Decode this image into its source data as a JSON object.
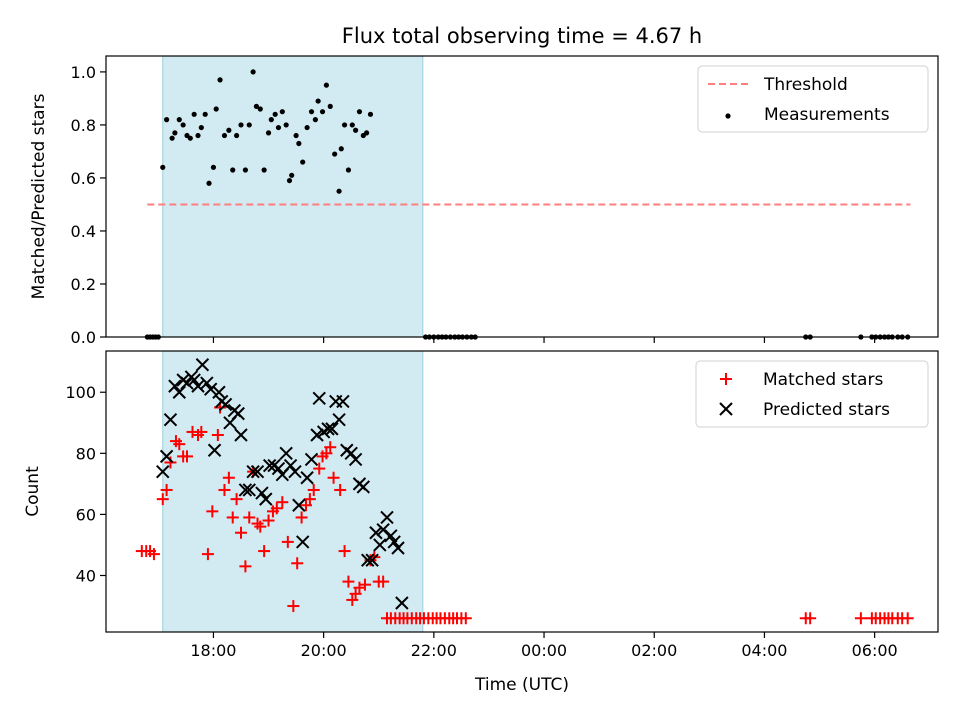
{
  "chart_data": {
    "type": "scatter",
    "title": "Flux total observing time = 4.67 h",
    "xlabel": "Time (UTC)",
    "x_tick_labels": [
      "18:00",
      "20:00",
      "22:00",
      "00:00",
      "02:00",
      "04:00",
      "06:00"
    ],
    "x_tick_hours": [
      18,
      20,
      22,
      24,
      26,
      28,
      30
    ],
    "xlim": [
      16.05,
      31.15
    ],
    "observing_window": [
      17.08,
      21.8
    ],
    "colors": {
      "window": "#add8e6",
      "threshold": "#ff7f7f",
      "measurements": "#000000",
      "matched": "#ff0000",
      "predicted": "#000000"
    },
    "panels": [
      {
        "id": "ratio",
        "ylabel": "Matched/Predicted stars",
        "ylim": [
          0,
          1.06
        ],
        "yticks": [
          0.0,
          0.2,
          0.4,
          0.6,
          0.8,
          1.0
        ],
        "ytick_labels": [
          "0.0",
          "0.2",
          "0.4",
          "0.6",
          "0.8",
          "1.0"
        ],
        "legend_position": "top-right",
        "threshold": {
          "name": "Threshold",
          "value": 0.5,
          "x_range": [
            16.8,
            30.65
          ]
        },
        "measurements": {
          "name": "Measurements",
          "points": [
            [
              16.8,
              0
            ],
            [
              16.85,
              0
            ],
            [
              16.9,
              0
            ],
            [
              16.95,
              0
            ],
            [
              17.0,
              0
            ],
            [
              17.08,
              0.64
            ],
            [
              17.15,
              0.82
            ],
            [
              17.25,
              0.75
            ],
            [
              17.3,
              0.77
            ],
            [
              17.38,
              0.82
            ],
            [
              17.45,
              0.8
            ],
            [
              17.52,
              0.76
            ],
            [
              17.58,
              0.75
            ],
            [
              17.65,
              0.84
            ],
            [
              17.72,
              0.76
            ],
            [
              17.78,
              0.79
            ],
            [
              17.85,
              0.84
            ],
            [
              17.92,
              0.58
            ],
            [
              18.0,
              0.64
            ],
            [
              18.05,
              0.86
            ],
            [
              18.12,
              0.97
            ],
            [
              18.2,
              0.76
            ],
            [
              18.28,
              0.78
            ],
            [
              18.35,
              0.63
            ],
            [
              18.42,
              0.76
            ],
            [
              18.5,
              0.8
            ],
            [
              18.58,
              0.63
            ],
            [
              18.65,
              0.8
            ],
            [
              18.72,
              1.0
            ],
            [
              18.78,
              0.87
            ],
            [
              18.85,
              0.86
            ],
            [
              18.92,
              0.63
            ],
            [
              19.0,
              0.77
            ],
            [
              19.05,
              0.82
            ],
            [
              19.12,
              0.84
            ],
            [
              19.18,
              0.79
            ],
            [
              19.25,
              0.85
            ],
            [
              19.32,
              0.8
            ],
            [
              19.38,
              0.59
            ],
            [
              19.42,
              0.61
            ],
            [
              19.5,
              0.76
            ],
            [
              19.55,
              0.73
            ],
            [
              19.62,
              0.66
            ],
            [
              19.7,
              0.79
            ],
            [
              19.78,
              0.85
            ],
            [
              19.85,
              0.82
            ],
            [
              19.9,
              0.89
            ],
            [
              19.98,
              0.85
            ],
            [
              20.05,
              0.95
            ],
            [
              20.12,
              0.87
            ],
            [
              20.2,
              0.69
            ],
            [
              20.28,
              0.55
            ],
            [
              20.32,
              0.71
            ],
            [
              20.38,
              0.8
            ],
            [
              20.45,
              0.63
            ],
            [
              20.52,
              0.8
            ],
            [
              20.58,
              0.78
            ],
            [
              20.65,
              0.85
            ],
            [
              20.72,
              0.76
            ],
            [
              20.78,
              0.77
            ],
            [
              20.85,
              0.84
            ],
            [
              21.85,
              0
            ],
            [
              21.92,
              0
            ],
            [
              22.0,
              0
            ],
            [
              22.08,
              0
            ],
            [
              22.15,
              0
            ],
            [
              22.22,
              0
            ],
            [
              22.3,
              0
            ],
            [
              22.38,
              0
            ],
            [
              22.45,
              0
            ],
            [
              22.52,
              0
            ],
            [
              22.6,
              0
            ],
            [
              22.68,
              0
            ],
            [
              22.75,
              0
            ],
            [
              28.75,
              0
            ],
            [
              28.83,
              0
            ],
            [
              29.75,
              0
            ],
            [
              29.95,
              0
            ],
            [
              30.02,
              0
            ],
            [
              30.1,
              0
            ],
            [
              30.18,
              0
            ],
            [
              30.25,
              0
            ],
            [
              30.32,
              0
            ],
            [
              30.42,
              0
            ],
            [
              30.5,
              0
            ],
            [
              30.6,
              0
            ]
          ]
        }
      },
      {
        "id": "count",
        "ylabel": "Count",
        "ylim": [
          21.5,
          113.5
        ],
        "yticks": [
          40,
          60,
          80,
          100
        ],
        "ytick_labels": [
          "40",
          "60",
          "80",
          "100"
        ],
        "legend_position": "top-right",
        "series": [
          {
            "name": "Matched stars",
            "marker": "plus",
            "points": [
              [
                16.7,
                48
              ],
              [
                16.78,
                48
              ],
              [
                16.85,
                48
              ],
              [
                16.92,
                47
              ],
              [
                17.08,
                65
              ],
              [
                17.15,
                68
              ],
              [
                17.22,
                77
              ],
              [
                17.32,
                84
              ],
              [
                17.38,
                83
              ],
              [
                17.45,
                79
              ],
              [
                17.52,
                79
              ],
              [
                17.62,
                87
              ],
              [
                17.72,
                86
              ],
              [
                17.78,
                87
              ],
              [
                17.9,
                47
              ],
              [
                17.98,
                61
              ],
              [
                18.08,
                86
              ],
              [
                18.12,
                95
              ],
              [
                18.2,
                68
              ],
              [
                18.28,
                72
              ],
              [
                18.35,
                59
              ],
              [
                18.42,
                65
              ],
              [
                18.5,
                54
              ],
              [
                18.58,
                43
              ],
              [
                18.65,
                59
              ],
              [
                18.72,
                74
              ],
              [
                18.8,
                57
              ],
              [
                18.85,
                56
              ],
              [
                18.92,
                48
              ],
              [
                19.0,
                58
              ],
              [
                19.08,
                61
              ],
              [
                19.15,
                62
              ],
              [
                19.25,
                64
              ],
              [
                19.35,
                51
              ],
              [
                19.45,
                30
              ],
              [
                19.52,
                44
              ],
              [
                19.6,
                59
              ],
              [
                19.68,
                63
              ],
              [
                19.75,
                65
              ],
              [
                19.82,
                68
              ],
              [
                19.92,
                75
              ],
              [
                19.98,
                79
              ],
              [
                20.05,
                80
              ],
              [
                20.12,
                82
              ],
              [
                20.18,
                72
              ],
              [
                20.3,
                68
              ],
              [
                20.38,
                48
              ],
              [
                20.45,
                38
              ],
              [
                20.52,
                32
              ],
              [
                20.58,
                34
              ],
              [
                20.65,
                36
              ],
              [
                20.75,
                37
              ],
              [
                20.85,
                45
              ],
              [
                20.92,
                46
              ],
              [
                21.0,
                38
              ],
              [
                21.08,
                38
              ],
              [
                21.15,
                26
              ],
              [
                21.22,
                26
              ],
              [
                21.3,
                26
              ],
              [
                21.38,
                26
              ],
              [
                21.45,
                26
              ],
              [
                21.52,
                26
              ],
              [
                21.6,
                26
              ],
              [
                21.68,
                26
              ],
              [
                21.75,
                26
              ],
              [
                21.82,
                26
              ],
              [
                21.9,
                26
              ],
              [
                21.98,
                26
              ],
              [
                22.05,
                26
              ],
              [
                22.12,
                26
              ],
              [
                22.2,
                26
              ],
              [
                22.28,
                26
              ],
              [
                22.35,
                26
              ],
              [
                22.42,
                26
              ],
              [
                22.5,
                26
              ],
              [
                22.58,
                26
              ],
              [
                28.75,
                26
              ],
              [
                28.83,
                26
              ],
              [
                29.75,
                26
              ],
              [
                29.95,
                26
              ],
              [
                30.02,
                26
              ],
              [
                30.1,
                26
              ],
              [
                30.18,
                26
              ],
              [
                30.25,
                26
              ],
              [
                30.32,
                26
              ],
              [
                30.42,
                26
              ],
              [
                30.5,
                26
              ],
              [
                30.6,
                26
              ]
            ]
          },
          {
            "name": "Predicted stars",
            "marker": "cross",
            "points": [
              [
                17.08,
                74
              ],
              [
                17.15,
                79
              ],
              [
                17.22,
                91
              ],
              [
                17.3,
                102
              ],
              [
                17.38,
                100
              ],
              [
                17.45,
                104
              ],
              [
                17.52,
                103
              ],
              [
                17.6,
                105
              ],
              [
                17.65,
                104
              ],
              [
                17.72,
                102
              ],
              [
                17.8,
                109
              ],
              [
                17.88,
                103
              ],
              [
                17.95,
                101
              ],
              [
                18.02,
                81
              ],
              [
                18.1,
                100
              ],
              [
                18.15,
                97
              ],
              [
                18.22,
                96
              ],
              [
                18.3,
                90
              ],
              [
                18.38,
                94
              ],
              [
                18.45,
                93
              ],
              [
                18.5,
                86
              ],
              [
                18.58,
                68
              ],
              [
                18.65,
                68
              ],
              [
                18.72,
                74
              ],
              [
                18.8,
                74
              ],
              [
                18.88,
                67
              ],
              [
                18.95,
                65
              ],
              [
                19.02,
                76
              ],
              [
                19.1,
                76
              ],
              [
                19.18,
                75
              ],
              [
                19.25,
                73
              ],
              [
                19.32,
                80
              ],
              [
                19.4,
                76
              ],
              [
                19.48,
                74
              ],
              [
                19.55,
                63
              ],
              [
                19.62,
                51
              ],
              [
                19.7,
                72
              ],
              [
                19.78,
                78
              ],
              [
                19.88,
                86
              ],
              [
                19.92,
                98
              ],
              [
                20.0,
                87
              ],
              [
                20.08,
                88
              ],
              [
                20.15,
                88
              ],
              [
                20.22,
                97
              ],
              [
                20.28,
                91
              ],
              [
                20.35,
                97
              ],
              [
                20.42,
                81
              ],
              [
                20.5,
                80
              ],
              [
                20.58,
                78
              ],
              [
                20.65,
                70
              ],
              [
                20.72,
                69
              ],
              [
                20.8,
                45
              ],
              [
                20.88,
                45
              ],
              [
                20.95,
                54
              ],
              [
                21.02,
                50
              ],
              [
                21.08,
                55
              ],
              [
                21.15,
                59
              ],
              [
                21.22,
                53
              ],
              [
                21.28,
                51
              ],
              [
                21.35,
                49
              ],
              [
                21.42,
                31
              ]
            ]
          }
        ]
      }
    ]
  }
}
